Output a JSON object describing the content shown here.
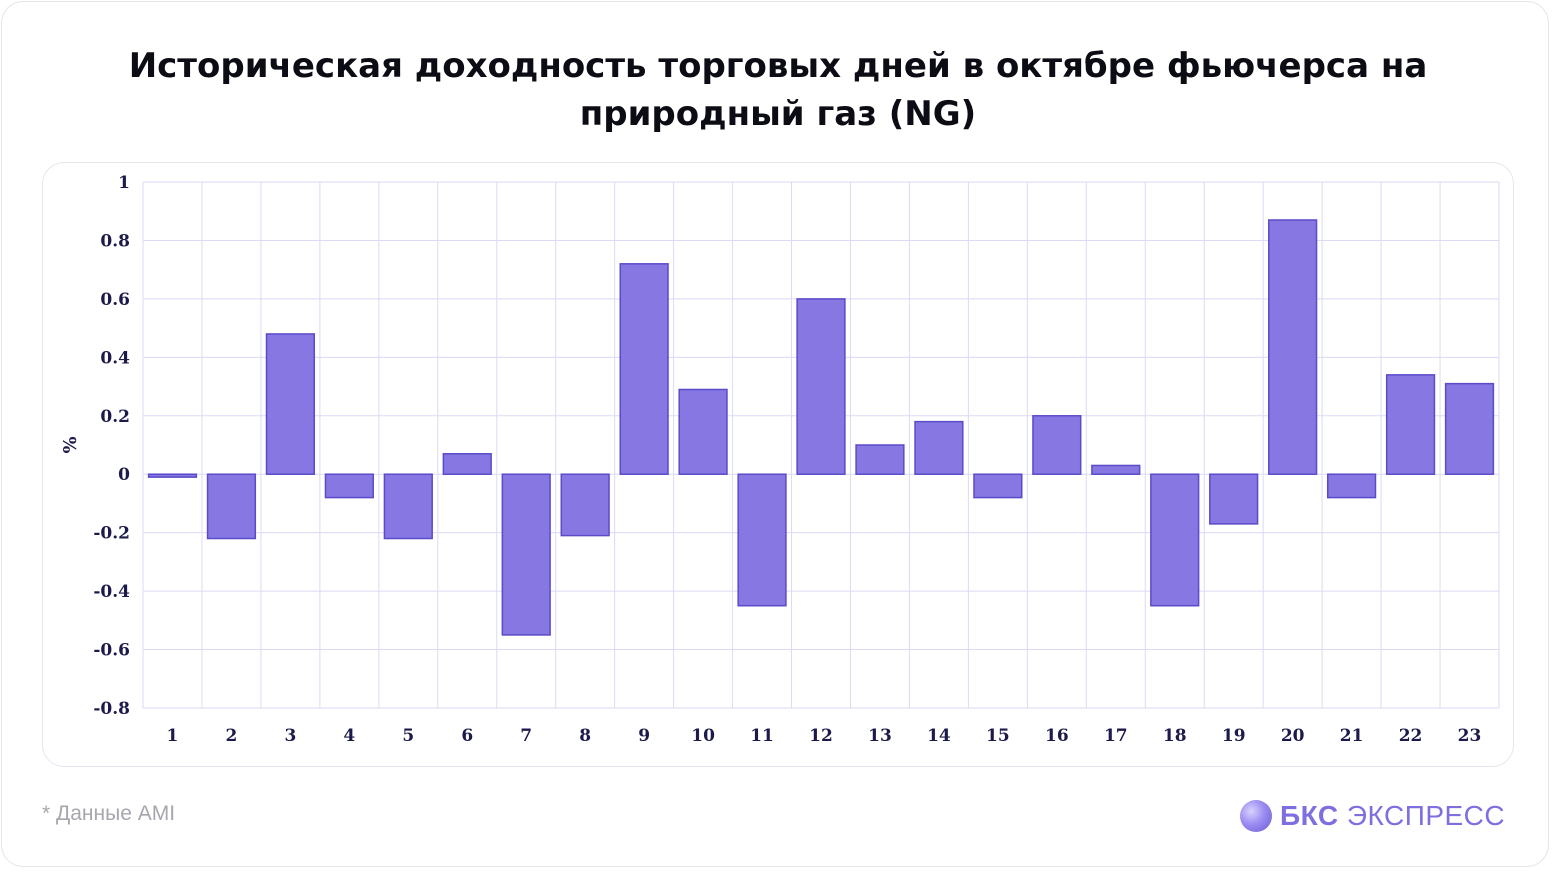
{
  "title": "Историческая доходность торговых дней в октябре фьючерса на природный газ (NG)",
  "footnote": "* Данные AMI",
  "brand": {
    "strong": "БКС",
    "light": "ЭКСПРЕСС"
  },
  "colors": {
    "bar_fill": "#8677e3",
    "bar_stroke": "#5a4bc9",
    "grid": "#dcdaf5",
    "text": "#1c1a4a"
  },
  "chart_data": {
    "type": "bar",
    "title": "Историческая доходность торговых дней в октябре фьючерса на природный газ (NG)",
    "xlabel": "",
    "ylabel": "%",
    "ylim": [
      -0.8,
      1
    ],
    "yticks": [
      "1",
      "0.8",
      "0.6",
      "0.4",
      "0.2",
      "0",
      "-0.2",
      "-0.4",
      "-0.6",
      "-0.8"
    ],
    "ytick_values": [
      1,
      0.8,
      0.6,
      0.4,
      0.2,
      0,
      -0.2,
      -0.4,
      -0.6,
      -0.8
    ],
    "grid": true,
    "categories": [
      "1",
      "2",
      "3",
      "4",
      "5",
      "6",
      "7",
      "8",
      "9",
      "10",
      "11",
      "12",
      "13",
      "14",
      "15",
      "16",
      "17",
      "18",
      "19",
      "20",
      "21",
      "22",
      "23"
    ],
    "values": [
      -0.01,
      -0.22,
      0.48,
      -0.08,
      -0.22,
      0.07,
      -0.55,
      -0.21,
      0.72,
      0.29,
      -0.45,
      0.6,
      0.1,
      0.18,
      -0.08,
      0.2,
      0.03,
      -0.45,
      -0.17,
      0.87,
      -0.08,
      0.34,
      0.31
    ]
  }
}
